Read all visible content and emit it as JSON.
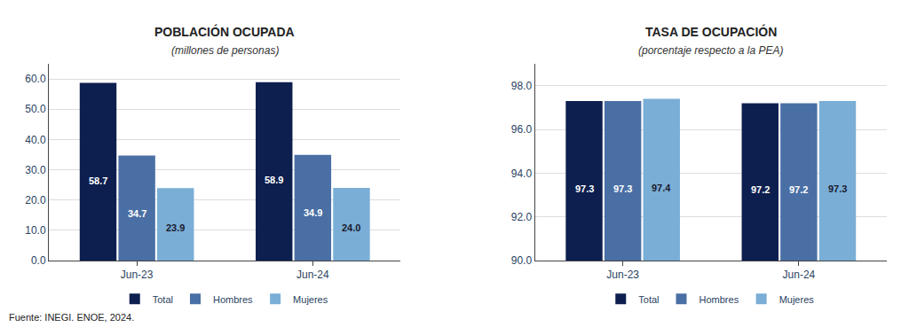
{
  "chart_data": [
    {
      "type": "bar",
      "title": "POBLACIÓN OCUPADA",
      "subtitle": "(millones de personas)",
      "categories": [
        "Jun-23",
        "Jun-24"
      ],
      "series": [
        {
          "name": "Total",
          "color": "#0d1f4e",
          "values": [
            58.7,
            58.9
          ]
        },
        {
          "name": "Hombres",
          "color": "#4a6fa5",
          "values": [
            34.7,
            34.9
          ]
        },
        {
          "name": "Mujeres",
          "color": "#7aaed6",
          "values": [
            23.9,
            24.0
          ],
          "value_labels": [
            "23.9",
            "24.0"
          ]
        }
      ],
      "ylim": [
        0,
        65
      ],
      "yticks": [
        {
          "value": 0,
          "label": "0.0"
        },
        {
          "value": 10,
          "label": "10.0"
        },
        {
          "value": 20,
          "label": "20.0"
        },
        {
          "value": 30,
          "label": "30.0"
        },
        {
          "value": 40,
          "label": "40.0"
        },
        {
          "value": 50,
          "label": "50.0"
        },
        {
          "value": 60,
          "label": "60.0"
        }
      ],
      "grid": true,
      "legend": "bottom",
      "data_labels": true,
      "annotations": [
        "Fuente: INEGI. ENOE, 2024."
      ]
    },
    {
      "type": "bar",
      "title": "TASA DE OCUPACIÓN",
      "subtitle": "(porcentaje respecto a la PEA)",
      "categories": [
        "Jun-23",
        "Jun-24"
      ],
      "series": [
        {
          "name": "Total",
          "color": "#0d1f4e",
          "values": [
            97.3,
            97.2
          ]
        },
        {
          "name": "Hombres",
          "color": "#4a6fa5",
          "values": [
            97.3,
            97.2
          ]
        },
        {
          "name": "Mujeres",
          "color": "#7aaed6",
          "values": [
            97.4,
            97.3
          ]
        }
      ],
      "ylim": [
        90.0,
        99.0
      ],
      "yticks": [
        {
          "value": 90,
          "label": "90.0"
        },
        {
          "value": 92,
          "label": "92.0"
        },
        {
          "value": 94,
          "label": "94.0"
        },
        {
          "value": 96,
          "label": "96.0"
        },
        {
          "value": 98,
          "label": "98.0"
        }
      ],
      "grid": true,
      "legend": "bottom",
      "data_labels": true
    }
  ]
}
